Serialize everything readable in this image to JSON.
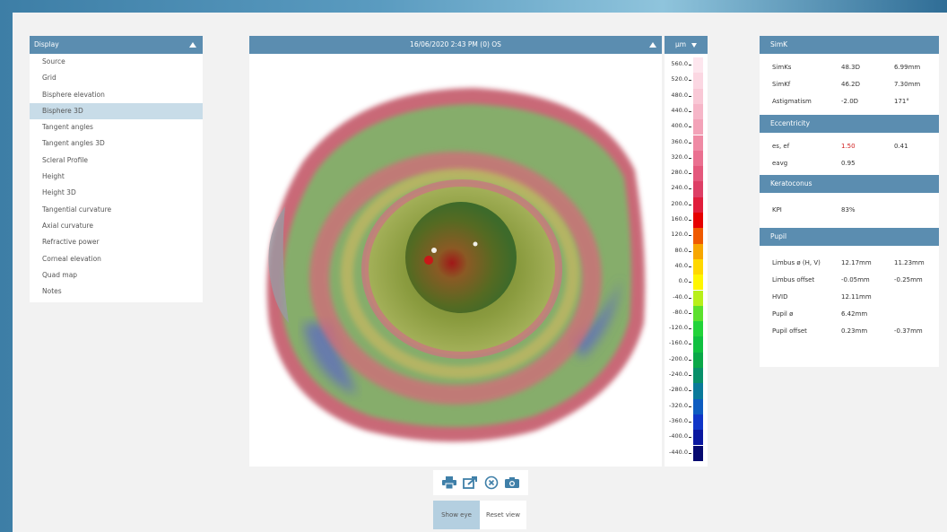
{
  "display_panel": {
    "title": "Display",
    "items": [
      {
        "label": "Source",
        "active": false
      },
      {
        "label": "Grid",
        "active": false
      },
      {
        "label": "Bisphere elevation",
        "active": false
      },
      {
        "label": "Bisphere 3D",
        "active": true
      },
      {
        "label": "Tangent angles",
        "active": false
      },
      {
        "label": "Tangent angles 3D",
        "active": false
      },
      {
        "label": "Scleral Profile",
        "active": false
      },
      {
        "label": "Height",
        "active": false
      },
      {
        "label": "Height 3D",
        "active": false
      },
      {
        "label": "Tangential curvature",
        "active": false
      },
      {
        "label": "Axial curvature",
        "active": false
      },
      {
        "label": "Refractive power",
        "active": false
      },
      {
        "label": "Corneal elevation",
        "active": false
      },
      {
        "label": "Quad map",
        "active": false
      },
      {
        "label": "Notes",
        "active": false
      }
    ]
  },
  "view": {
    "title": "16/06/2020 2:43 PM (0) OS"
  },
  "scale": {
    "unit": "µm",
    "ticks": [
      {
        "label": "560.0",
        "color": "#fde6ee"
      },
      {
        "label": "520.0",
        "color": "#fbd7e2"
      },
      {
        "label": "480.0",
        "color": "#f9c8d6"
      },
      {
        "label": "440.0",
        "color": "#f6b6c8"
      },
      {
        "label": "400.0",
        "color": "#f3a2b8"
      },
      {
        "label": "360.0",
        "color": "#ef8aa4"
      },
      {
        "label": "320.0",
        "color": "#ea7090"
      },
      {
        "label": "280.0",
        "color": "#e4587c"
      },
      {
        "label": "240.0",
        "color": "#dd3f66"
      },
      {
        "label": "200.0",
        "color": "#e01e3c"
      },
      {
        "label": "160.0",
        "color": "#e60000"
      },
      {
        "label": "120.0",
        "color": "#ef5a00"
      },
      {
        "label": "80.0",
        "color": "#f7a600"
      },
      {
        "label": "40.0",
        "color": "#ffd800"
      },
      {
        "label": "0.0",
        "color": "#fff600"
      },
      {
        "label": "-40.0",
        "color": "#b8ef1a"
      },
      {
        "label": "-80.0",
        "color": "#5ce02e"
      },
      {
        "label": "-120.0",
        "color": "#22d33a"
      },
      {
        "label": "-160.0",
        "color": "#10c040"
      },
      {
        "label": "-200.0",
        "color": "#0aa848"
      },
      {
        "label": "-240.0",
        "color": "#08906a"
      },
      {
        "label": "-280.0",
        "color": "#0a7a9a"
      },
      {
        "label": "-320.0",
        "color": "#0e5cc0"
      },
      {
        "label": "-360.0",
        "color": "#1036c8"
      },
      {
        "label": "-400.0",
        "color": "#0b18a0"
      },
      {
        "label": "-440.0",
        "color": "#070a70"
      }
    ]
  },
  "toolbar": {
    "print_icon": "printer-icon",
    "export_icon": "export-icon",
    "close_icon": "close-circle-icon",
    "camera_icon": "camera-icon"
  },
  "buttons": {
    "show_eye": "Show eye",
    "reset_view": "Reset view"
  },
  "simk": {
    "title": "SimK",
    "rows": [
      {
        "label": "SimKs",
        "v1": "48.3D",
        "v2": "6.99mm"
      },
      {
        "label": "SimKf",
        "v1": "46.2D",
        "v2": "7.30mm"
      },
      {
        "label": "Astigmatism",
        "v1": "-2.0D",
        "v2": "171°"
      }
    ]
  },
  "eccentricity": {
    "title": "Eccentricity",
    "rows": [
      {
        "label": "es, ef",
        "v1": "1.50",
        "v2": "0.41"
      },
      {
        "label": "eavg",
        "v1": "0.95",
        "v2": ""
      }
    ]
  },
  "keratoconus": {
    "title": "Keratoconus",
    "rows": [
      {
        "label": "KPI",
        "v1": "83%",
        "v2": ""
      }
    ]
  },
  "pupil": {
    "title": "Pupil",
    "rows": [
      {
        "label": "Limbus ø (H, V)",
        "v1": "12.17mm",
        "v2": "11.23mm"
      },
      {
        "label": "Limbus offset",
        "v1": "-0.05mm",
        "v2": "-0.25mm"
      },
      {
        "label": "HVID",
        "v1": "12.11mm",
        "v2": ""
      },
      {
        "label": "Pupil ø",
        "v1": "6.42mm",
        "v2": ""
      },
      {
        "label": "Pupil offset",
        "v1": "0.23mm",
        "v2": "-0.37mm"
      }
    ]
  }
}
